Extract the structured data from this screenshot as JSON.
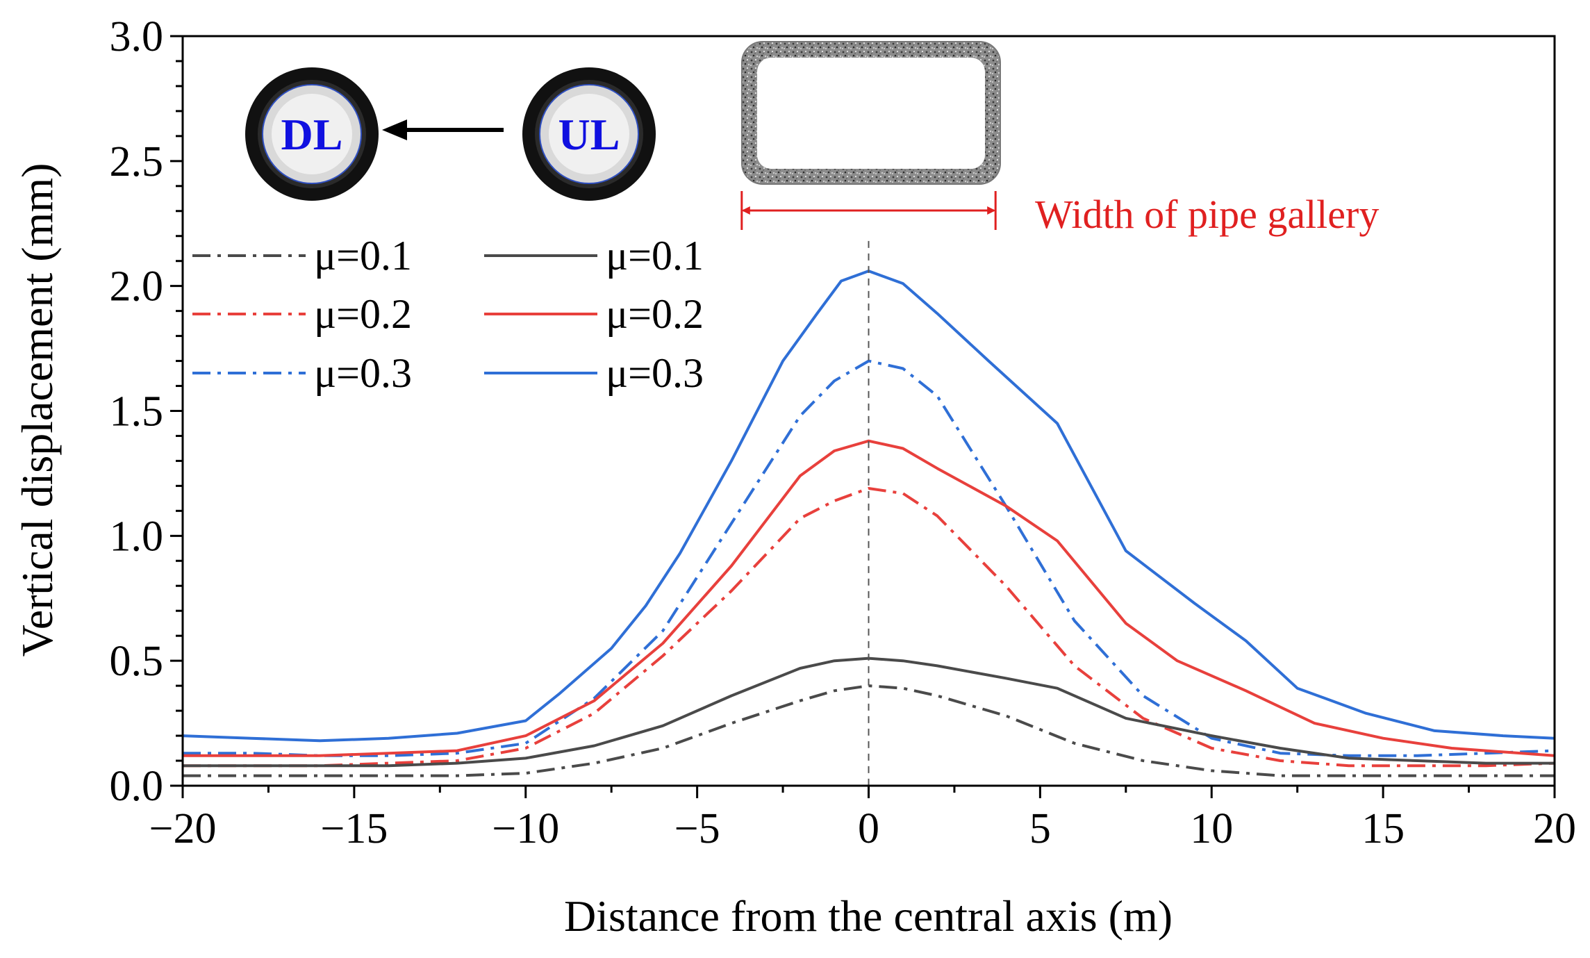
{
  "chart_data": {
    "type": "line",
    "title": "",
    "xlabel": "Distance from the central axis (m)",
    "ylabel": "Vertical displacement (mm)",
    "xlim": [
      -20,
      20
    ],
    "ylim": [
      0,
      3.0
    ],
    "x_ticks": [
      -20,
      -15,
      -10,
      -5,
      0,
      5,
      10,
      15,
      20
    ],
    "x_tick_labels": [
      "−20",
      "−15",
      "−10",
      "−5",
      "0",
      "5",
      "10",
      "15",
      "20"
    ],
    "y_ticks": [
      0,
      0.5,
      1.0,
      1.5,
      2.0,
      2.5,
      3.0
    ],
    "y_tick_labels": [
      "0.0",
      "0.5",
      "1.0",
      "1.5",
      "2.0",
      "2.5",
      "3.0"
    ],
    "grid": false,
    "legend_position": "top-left",
    "center_line_x": 0,
    "pipe_gallery_extent": [
      -3.7,
      3.7
    ],
    "annotations": {
      "pipe_gallery_label": "Width of pipe gallery",
      "dl_label": "DL",
      "ul_label": "UL"
    },
    "colors": {
      "mu01": "#4a4a4a",
      "mu02": "#e8403c",
      "mu03": "#2f6fd6",
      "gallery": "#e02020",
      "pipe_text": "#1010e0",
      "arrow": "#000000"
    },
    "series": [
      {
        "name": "μ=0.1",
        "group": "DL",
        "style": "dashdot",
        "color_key": "mu01",
        "x": [
          -20,
          -18,
          -16,
          -14,
          -12,
          -10,
          -8,
          -6,
          -4,
          -2,
          -1,
          0,
          1,
          2,
          4,
          6,
          8,
          10,
          12,
          14,
          16,
          18,
          20
        ],
        "y": [
          0.04,
          0.04,
          0.04,
          0.04,
          0.04,
          0.05,
          0.09,
          0.15,
          0.25,
          0.34,
          0.38,
          0.4,
          0.39,
          0.36,
          0.28,
          0.17,
          0.1,
          0.06,
          0.04,
          0.04,
          0.04,
          0.04,
          0.04
        ]
      },
      {
        "name": "μ=0.2",
        "group": "DL",
        "style": "dashdot",
        "color_key": "mu02",
        "x": [
          -20,
          -18,
          -16,
          -14,
          -12,
          -10,
          -8,
          -6,
          -4,
          -2,
          -1,
          0,
          1,
          2,
          4,
          6,
          8,
          10,
          12,
          14,
          16,
          18,
          20
        ],
        "y": [
          0.08,
          0.08,
          0.08,
          0.09,
          0.1,
          0.15,
          0.29,
          0.52,
          0.78,
          1.07,
          1.14,
          1.19,
          1.17,
          1.08,
          0.8,
          0.48,
          0.27,
          0.15,
          0.1,
          0.08,
          0.08,
          0.08,
          0.09
        ]
      },
      {
        "name": "μ=0.3",
        "group": "DL",
        "style": "dashdot",
        "color_key": "mu03",
        "x": [
          -20,
          -18,
          -16,
          -14,
          -12,
          -10,
          -8,
          -6,
          -4,
          -2,
          -1,
          0,
          1,
          2,
          4,
          6,
          8,
          10,
          12,
          14,
          16,
          18,
          20
        ],
        "y": [
          0.13,
          0.13,
          0.12,
          0.12,
          0.13,
          0.17,
          0.35,
          0.62,
          1.05,
          1.48,
          1.62,
          1.7,
          1.67,
          1.56,
          1.12,
          0.66,
          0.36,
          0.19,
          0.13,
          0.12,
          0.12,
          0.13,
          0.14
        ]
      },
      {
        "name": "μ=0.1",
        "group": "UL",
        "style": "solid",
        "color_key": "mu01",
        "x": [
          -20,
          -18,
          -16,
          -14,
          -12,
          -10,
          -8,
          -6,
          -4,
          -2,
          -1,
          0,
          1,
          2,
          4,
          5.5,
          7.5,
          10,
          12,
          14,
          16,
          18,
          20
        ],
        "y": [
          0.08,
          0.08,
          0.08,
          0.08,
          0.09,
          0.11,
          0.16,
          0.24,
          0.36,
          0.47,
          0.5,
          0.51,
          0.5,
          0.48,
          0.43,
          0.39,
          0.27,
          0.2,
          0.15,
          0.11,
          0.1,
          0.09,
          0.09
        ]
      },
      {
        "name": "μ=0.2",
        "group": "UL",
        "style": "solid",
        "color_key": "mu02",
        "x": [
          -20,
          -18,
          -16,
          -14,
          -12,
          -10,
          -8,
          -6,
          -4,
          -2,
          -1,
          0,
          1,
          2,
          4,
          5.5,
          7.5,
          9,
          11,
          13,
          15,
          17,
          20
        ],
        "y": [
          0.12,
          0.12,
          0.12,
          0.13,
          0.14,
          0.2,
          0.34,
          0.57,
          0.88,
          1.24,
          1.34,
          1.38,
          1.35,
          1.27,
          1.12,
          0.98,
          0.65,
          0.5,
          0.38,
          0.25,
          0.19,
          0.15,
          0.12
        ]
      },
      {
        "name": "μ=0.3",
        "group": "UL",
        "style": "solid",
        "color_key": "mu03",
        "x": [
          -20,
          -18,
          -16,
          -14,
          -12,
          -10,
          -9,
          -7.5,
          -6.5,
          -5.5,
          -4,
          -2.5,
          -1.5,
          -0.8,
          0,
          1,
          2,
          3.5,
          5.5,
          7.5,
          9.5,
          11,
          12.5,
          14.5,
          16.5,
          18.5,
          20
        ],
        "y": [
          0.2,
          0.19,
          0.18,
          0.19,
          0.21,
          0.26,
          0.37,
          0.55,
          0.72,
          0.93,
          1.3,
          1.7,
          1.89,
          2.02,
          2.06,
          2.01,
          1.89,
          1.7,
          1.45,
          0.94,
          0.73,
          0.58,
          0.39,
          0.29,
          0.22,
          0.2,
          0.19
        ]
      }
    ]
  }
}
